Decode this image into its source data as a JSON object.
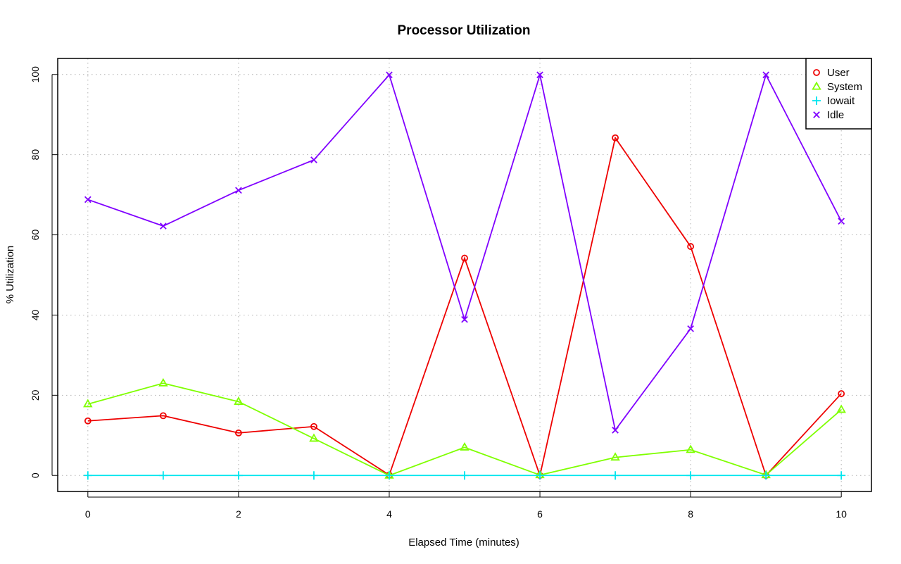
{
  "chart_data": {
    "type": "line",
    "title": "Processor Utilization",
    "xlabel": "Elapsed Time (minutes)",
    "ylabel": "% Utilization",
    "x": [
      0,
      1,
      2,
      3,
      4,
      5,
      6,
      7,
      8,
      9,
      10
    ],
    "xlim": [
      -0.4,
      10.4
    ],
    "ylim": [
      -4,
      104
    ],
    "xticks": [
      "0",
      "2",
      "4",
      "6",
      "8",
      "10"
    ],
    "yticks": [
      "0",
      "20",
      "40",
      "60",
      "80",
      "100"
    ],
    "grid": true,
    "legend_position": "top-right",
    "series": [
      {
        "name": "User",
        "color": "#ee0000",
        "marker": "circle",
        "values": [
          13.6,
          14.9,
          10.6,
          12.2,
          0.1,
          54.2,
          0.0,
          84.2,
          57.1,
          0.0,
          20.4
        ]
      },
      {
        "name": "System",
        "color": "#7fff00",
        "marker": "triangle",
        "values": [
          17.8,
          23.0,
          18.4,
          9.2,
          0.0,
          7.0,
          0.1,
          4.5,
          6.4,
          0.1,
          16.4
        ]
      },
      {
        "name": "Iowait",
        "color": "#00e5ee",
        "marker": "plus",
        "values": [
          0,
          0,
          0,
          0,
          0,
          0,
          0,
          0,
          0,
          0,
          0
        ]
      },
      {
        "name": "Idle",
        "color": "#8000ff",
        "marker": "cross",
        "values": [
          68.8,
          62.2,
          71.1,
          78.7,
          99.9,
          38.9,
          99.9,
          11.3,
          36.6,
          99.9,
          63.4
        ]
      }
    ]
  }
}
